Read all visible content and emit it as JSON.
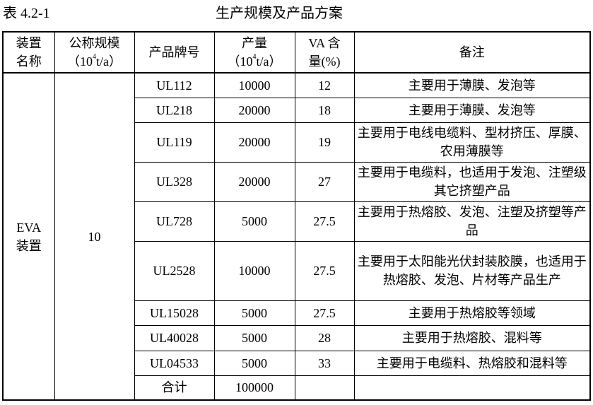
{
  "caption": {
    "number": "表 4.2-1",
    "title": "生产规模及产品方案"
  },
  "headers": {
    "device": [
      "装置",
      "名称"
    ],
    "scale": [
      "公称规模",
      "（10",
      "4",
      "t/a）"
    ],
    "brand": "产品牌号",
    "output": [
      "产量",
      "（10",
      "4",
      "t/a）"
    ],
    "va": [
      "VA 含",
      "量(%)"
    ],
    "note": "备注"
  },
  "device": [
    "EVA",
    "装置"
  ],
  "scale": "10",
  "rows": [
    {
      "brand": "UL112",
      "output": "10000",
      "va": "12",
      "note": "主要用于薄膜、发泡等"
    },
    {
      "brand": "UL218",
      "output": "20000",
      "va": "18",
      "note": "主要用于薄膜、发泡等"
    },
    {
      "brand": "UL119",
      "output": "20000",
      "va": "19",
      "note": "主要用于电线电缆料、型材挤压、厚膜、农用薄膜等"
    },
    {
      "brand": "UL328",
      "output": "20000",
      "va": "27",
      "note": "主要用于电缆料，也适用于发泡、注塑级其它挤塑产品"
    },
    {
      "brand": "UL728",
      "output": "5000",
      "va": "27.5",
      "note": "主要用于热熔胶、发泡、注塑及挤塑等产品"
    },
    {
      "brand": "UL2528",
      "output": "10000",
      "va": "27.5",
      "note": "主要用于太阳能光伏封装胶膜，也适用于热熔胶、发泡、片材等产品生产"
    },
    {
      "brand": "UL15028",
      "output": "5000",
      "va": "27.5",
      "note": "主要用于热熔胶等领域"
    },
    {
      "brand": "UL40028",
      "output": "5000",
      "va": "28",
      "note": "主要用于热熔胶、混料等"
    },
    {
      "brand": "UL04533",
      "output": "5000",
      "va": "33",
      "note": "主要用于电缆料、热熔胶和混料等"
    }
  ],
  "total": {
    "label": "合计",
    "output": "100000"
  }
}
